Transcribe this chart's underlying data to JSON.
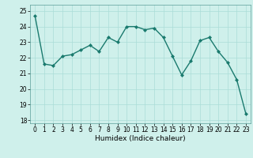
{
  "x": [
    0,
    1,
    2,
    3,
    4,
    5,
    6,
    7,
    8,
    9,
    10,
    11,
    12,
    13,
    14,
    15,
    16,
    17,
    18,
    19,
    20,
    21,
    22,
    23
  ],
  "y": [
    24.7,
    21.6,
    21.5,
    22.1,
    22.2,
    22.5,
    22.8,
    22.4,
    23.3,
    23.0,
    24.0,
    24.0,
    23.8,
    23.9,
    23.3,
    22.1,
    20.9,
    21.8,
    23.1,
    23.3,
    22.4,
    21.7,
    20.6,
    18.4
  ],
  "line_color": "#1a7a6e",
  "marker": "D",
  "marker_size": 2.0,
  "bg_color": "#cff0eb",
  "grid_color_major": "#aaddd7",
  "grid_color_minor": "#c5eae6",
  "xlabel": "Humidex (Indice chaleur)",
  "ylim": [
    17.8,
    25.4
  ],
  "yticks": [
    18,
    19,
    20,
    21,
    22,
    23,
    24,
    25
  ],
  "xticks": [
    0,
    1,
    2,
    3,
    4,
    5,
    6,
    7,
    8,
    9,
    10,
    11,
    12,
    13,
    14,
    15,
    16,
    17,
    18,
    19,
    20,
    21,
    22,
    23
  ],
  "xlabel_fontsize": 6.5,
  "tick_fontsize": 5.5,
  "linewidth": 1.0
}
